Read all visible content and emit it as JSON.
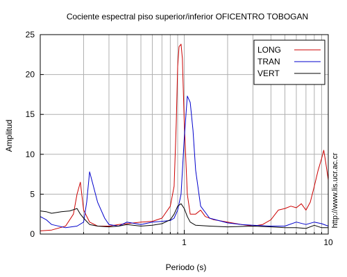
{
  "chart_data": {
    "type": "line",
    "title": "Cociente espectral piso superior/inferior OFICENTRO TOBOGAN",
    "xlabel": "Periodo (s)",
    "ylabel": "Amplitud",
    "xscale": "log",
    "xlim": [
      0.1,
      10
    ],
    "ylim": [
      0,
      25
    ],
    "xticks": [
      {
        "value": 1,
        "label": "1"
      },
      {
        "value": 10,
        "label": "10"
      }
    ],
    "yticks": [
      0,
      5,
      10,
      15,
      20,
      25
    ],
    "grid": true,
    "legend_position": "top-right",
    "side_note": "http://www.lis.ucr.ac.cr",
    "series": [
      {
        "name": "LONG",
        "color": "#cc0000",
        "points": [
          [
            0.1,
            0.4
          ],
          [
            0.12,
            0.5
          ],
          [
            0.15,
            1.0
          ],
          [
            0.17,
            2.5
          ],
          [
            0.18,
            5.0
          ],
          [
            0.19,
            6.5
          ],
          [
            0.2,
            3.0
          ],
          [
            0.22,
            1.5
          ],
          [
            0.25,
            1.0
          ],
          [
            0.3,
            1.0
          ],
          [
            0.35,
            1.2
          ],
          [
            0.4,
            1.3
          ],
          [
            0.5,
            1.5
          ],
          [
            0.6,
            1.6
          ],
          [
            0.7,
            2.0
          ],
          [
            0.8,
            3.5
          ],
          [
            0.85,
            6.0
          ],
          [
            0.88,
            14.0
          ],
          [
            0.9,
            21.0
          ],
          [
            0.92,
            23.5
          ],
          [
            0.95,
            23.8
          ],
          [
            0.97,
            22.0
          ],
          [
            1.0,
            14.0
          ],
          [
            1.05,
            5.0
          ],
          [
            1.1,
            2.5
          ],
          [
            1.2,
            2.5
          ],
          [
            1.3,
            3.0
          ],
          [
            1.4,
            2.2
          ],
          [
            1.6,
            1.8
          ],
          [
            2.0,
            1.5
          ],
          [
            2.5,
            1.2
          ],
          [
            3.0,
            1.0
          ],
          [
            3.5,
            1.2
          ],
          [
            4.0,
            1.8
          ],
          [
            4.5,
            3.0
          ],
          [
            5.0,
            3.2
          ],
          [
            5.5,
            3.5
          ],
          [
            6.0,
            3.3
          ],
          [
            6.5,
            3.8
          ],
          [
            7.0,
            3.0
          ],
          [
            7.5,
            4.0
          ],
          [
            8.0,
            6.0
          ],
          [
            8.5,
            8.0
          ],
          [
            9.0,
            9.5
          ],
          [
            9.3,
            10.5
          ],
          [
            9.6,
            9.0
          ],
          [
            10.0,
            6.8
          ]
        ]
      },
      {
        "name": "TRAN",
        "color": "#0000cc",
        "points": [
          [
            0.1,
            2.2
          ],
          [
            0.11,
            1.8
          ],
          [
            0.12,
            1.2
          ],
          [
            0.15,
            0.8
          ],
          [
            0.18,
            1.0
          ],
          [
            0.2,
            1.5
          ],
          [
            0.21,
            4.0
          ],
          [
            0.22,
            7.8
          ],
          [
            0.23,
            6.5
          ],
          [
            0.25,
            4.0
          ],
          [
            0.28,
            2.0
          ],
          [
            0.3,
            1.2
          ],
          [
            0.35,
            1.0
          ],
          [
            0.4,
            1.5
          ],
          [
            0.5,
            1.2
          ],
          [
            0.6,
            1.5
          ],
          [
            0.7,
            1.6
          ],
          [
            0.8,
            1.7
          ],
          [
            0.85,
            2.0
          ],
          [
            0.9,
            3.0
          ],
          [
            0.95,
            5.0
          ],
          [
            1.0,
            12.0
          ],
          [
            1.05,
            17.3
          ],
          [
            1.1,
            16.5
          ],
          [
            1.15,
            13.0
          ],
          [
            1.2,
            8.0
          ],
          [
            1.3,
            3.5
          ],
          [
            1.5,
            2.0
          ],
          [
            2.0,
            1.4
          ],
          [
            2.5,
            1.2
          ],
          [
            3.0,
            1.1
          ],
          [
            4.0,
            1.0
          ],
          [
            5.0,
            1.0
          ],
          [
            6.0,
            1.5
          ],
          [
            7.0,
            1.2
          ],
          [
            8.0,
            1.5
          ],
          [
            9.0,
            1.3
          ],
          [
            10.0,
            1.0
          ]
        ]
      },
      {
        "name": "VERT",
        "color": "#000000",
        "points": [
          [
            0.1,
            2.9
          ],
          [
            0.11,
            2.8
          ],
          [
            0.12,
            2.6
          ],
          [
            0.14,
            2.8
          ],
          [
            0.16,
            2.9
          ],
          [
            0.18,
            3.2
          ],
          [
            0.19,
            2.5
          ],
          [
            0.2,
            2.0
          ],
          [
            0.22,
            1.2
          ],
          [
            0.25,
            1.0
          ],
          [
            0.3,
            0.9
          ],
          [
            0.35,
            1.0
          ],
          [
            0.4,
            1.2
          ],
          [
            0.5,
            1.0
          ],
          [
            0.6,
            1.1
          ],
          [
            0.7,
            1.3
          ],
          [
            0.8,
            1.8
          ],
          [
            0.85,
            2.5
          ],
          [
            0.9,
            3.5
          ],
          [
            0.95,
            3.8
          ],
          [
            1.0,
            3.2
          ],
          [
            1.05,
            2.2
          ],
          [
            1.1,
            1.5
          ],
          [
            1.2,
            1.1
          ],
          [
            1.5,
            1.0
          ],
          [
            2.0,
            0.9
          ],
          [
            3.0,
            1.0
          ],
          [
            4.0,
            0.9
          ],
          [
            5.0,
            0.8
          ],
          [
            6.0,
            0.8
          ],
          [
            7.0,
            0.7
          ],
          [
            8.0,
            1.1
          ],
          [
            9.0,
            0.8
          ],
          [
            10.0,
            0.8
          ]
        ]
      }
    ]
  }
}
